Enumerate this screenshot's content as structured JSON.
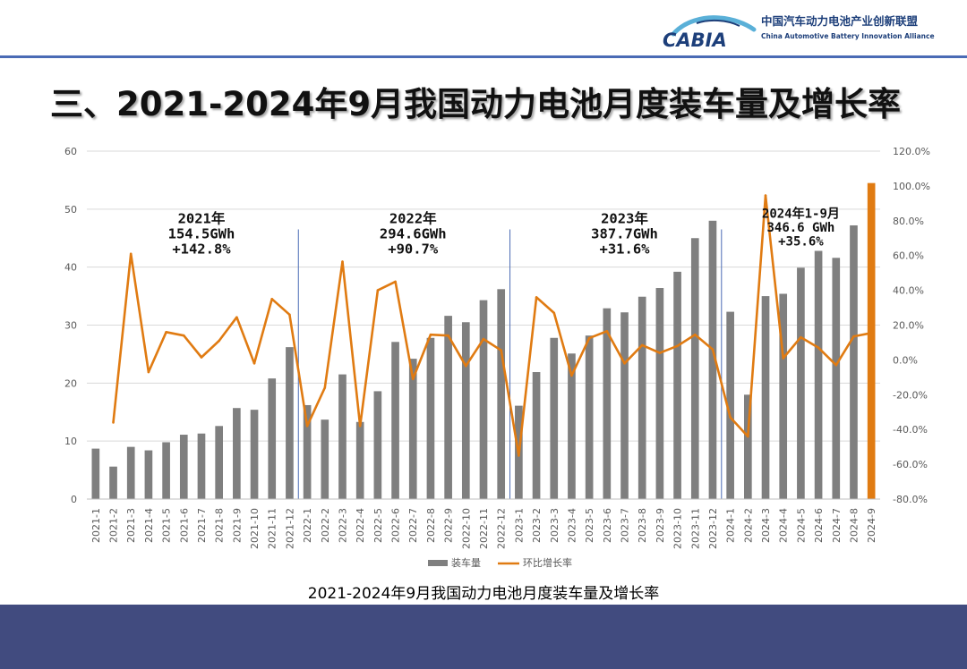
{
  "header": {
    "logo_mark": "CABIA",
    "org_cn": "中国汽车动力电池产业创新联盟",
    "org_en": "China Automotive Battery Innovation Alliance"
  },
  "page_title": "三、2021-2024年9月我国动力电池月度装车量及增长率",
  "caption": "2021-2024年9月我国动力电池月度装车量及增长率",
  "colors": {
    "bar": "#7f7f7f",
    "line": "#e07b12",
    "highlight": "#e07b12",
    "divider": "#4a6bb5",
    "footer": "#414b7f"
  },
  "chart_data": {
    "type": "bar",
    "categories": [
      "2021-1",
      "2021-2",
      "2021-3",
      "2021-4",
      "2021-5",
      "2021-6",
      "2021-7",
      "2021-8",
      "2021-9",
      "2021-10",
      "2021-11",
      "2021-12",
      "2022-1",
      "2022-2",
      "2022-3",
      "2022-4",
      "2022-5",
      "2022-6",
      "2022-7",
      "2022-8",
      "2022-9",
      "2022-10",
      "2022-11",
      "2022-12",
      "2023-1",
      "2023-2",
      "2023-3",
      "2023-4",
      "2023-5",
      "2023-6",
      "2023-7",
      "2023-8",
      "2023-9",
      "2023-10",
      "2023-11",
      "2023-12",
      "2024-1",
      "2024-2",
      "2024-3",
      "2024-4",
      "2024-5",
      "2024-6",
      "2024-7",
      "2024-8",
      "2024-9"
    ],
    "series": [
      {
        "name": "装车量",
        "type": "bar",
        "axis": "left",
        "values": [
          8.7,
          5.6,
          9.0,
          8.4,
          9.8,
          11.1,
          11.3,
          12.6,
          15.7,
          15.4,
          20.8,
          26.2,
          16.2,
          13.7,
          21.5,
          13.3,
          18.6,
          27.1,
          24.2,
          27.8,
          31.6,
          30.5,
          34.3,
          36.2,
          16.1,
          21.9,
          27.8,
          25.1,
          28.2,
          32.9,
          32.2,
          34.9,
          36.4,
          39.2,
          45.0,
          48.0,
          32.3,
          18.0,
          35.0,
          35.4,
          39.9,
          42.8,
          41.6,
          47.2,
          54.5
        ]
      },
      {
        "name": "环比增长率",
        "type": "line",
        "axis": "right",
        "unit": "%",
        "values": [
          null,
          -36.0,
          61.0,
          -7.0,
          16.0,
          14.0,
          1.5,
          11.0,
          24.5,
          -2.0,
          35.0,
          26.0,
          -38.0,
          -16.0,
          56.5,
          -38.0,
          40.0,
          45.0,
          -11.0,
          14.5,
          14.0,
          -3.5,
          12.0,
          5.5,
          -55.0,
          36.0,
          27.0,
          -9.0,
          12.5,
          16.5,
          -2.0,
          8.5,
          4.0,
          8.0,
          14.5,
          6.0,
          -33.0,
          -44.0,
          94.5,
          1.0,
          13.0,
          7.0,
          -3.0,
          13.5,
          15.5
        ]
      }
    ],
    "highlight_category": "2024-9",
    "left_axis": {
      "min": 0,
      "max": 60,
      "ticks": [
        "0",
        "10",
        "20",
        "30",
        "40",
        "50",
        "60"
      ]
    },
    "right_axis": {
      "min": -80,
      "max": 120,
      "ticks": [
        "-80.0%",
        "-60.0%",
        "-40.0%",
        "-20.0%",
        "0.0%",
        "20.0%",
        "40.0%",
        "60.0%",
        "80.0%",
        "100.0%",
        "120.0%"
      ]
    },
    "gridlines": true,
    "legend_position": "bottom",
    "year_dividers_after": [
      "2021-12",
      "2022-12",
      "2023-12"
    ],
    "annotations": [
      {
        "lines": [
          "2021年",
          "154.5GWh",
          "+142.8%"
        ],
        "center_category": "2021-7"
      },
      {
        "lines": [
          "2022年",
          "294.6GWh",
          "+90.7%"
        ],
        "center_category": "2022-7"
      },
      {
        "lines": [
          "2023年",
          "387.7GWh",
          "+31.6%"
        ],
        "center_category": "2023-7"
      },
      {
        "lines": [
          "2024年1-9月",
          "346.6 GWh",
          "+35.6%"
        ],
        "center_category": "2024-5"
      }
    ]
  }
}
